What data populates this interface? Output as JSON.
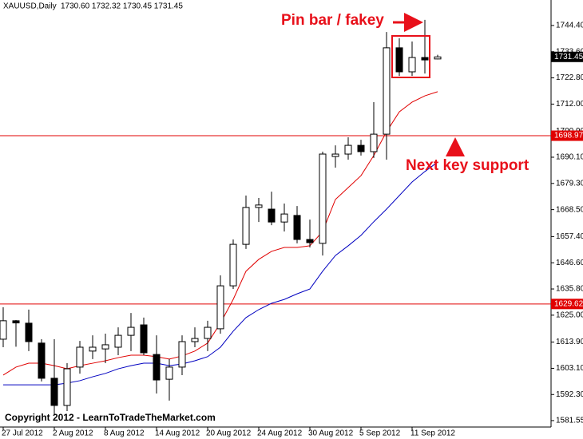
{
  "chart_data": {
    "type": "candlestick",
    "title": "XAUUSD,Daily",
    "ohlc_label": "1730.60 1732.32 1730.45 1731.45",
    "categories": [
      "27 Jul 2012",
      null,
      null,
      null,
      "2 Aug 2012",
      null,
      null,
      null,
      "8 Aug 2012",
      null,
      null,
      null,
      "14 Aug 2012",
      null,
      null,
      null,
      "20 Aug 2012",
      null,
      null,
      null,
      "24 Aug 2012",
      null,
      null,
      null,
      "30 Aug 2012",
      null,
      null,
      null,
      "5 Sep 2012",
      null,
      null,
      null,
      "11 Sep 2012",
      null,
      null
    ],
    "open": [
      1615.1,
      1622.7,
      1621.7,
      1613.5,
      1599.0,
      1587.8,
      1603.6,
      1610.2,
      1611.1,
      1611.8,
      1616.7,
      1621.0,
      1608.8,
      1598.6,
      1603.6,
      1614.1,
      1615.4,
      1619.4,
      1637.1,
      1654.2,
      1669.4,
      1668.7,
      1663.4,
      1666.1,
      1656.2,
      1654.6,
      1690.4,
      1691.4,
      1695.0,
      1692.4,
      1699.6,
      1735.2,
      1725.3,
      1731.2,
      1730.6
    ],
    "high": [
      1628.3,
      1623.0,
      1627.3,
      1615.1,
      1615.1,
      1605.2,
      1614.4,
      1616.7,
      1617.4,
      1620.0,
      1625.9,
      1624.0,
      1616.7,
      1606.9,
      1616.7,
      1620.0,
      1622.7,
      1641.4,
      1656.2,
      1674.3,
      1673.3,
      1675.9,
      1671.0,
      1670.0,
      1664.4,
      1692.4,
      1695.0,
      1698.3,
      1697.3,
      1712.8,
      1741.7,
      1739.1,
      1737.8,
      1746.7,
      1732.32
    ],
    "low": [
      1611.8,
      1612.0,
      1610.2,
      1597.7,
      1583.8,
      1585.5,
      1600.9,
      1606.9,
      1605.2,
      1608.5,
      1610.2,
      1608.5,
      1592.7,
      1589.8,
      1600.3,
      1611.8,
      1610.2,
      1617.4,
      1635.8,
      1652.3,
      1663.4,
      1662.1,
      1659.5,
      1654.6,
      1652.9,
      1649.6,
      1685.8,
      1689.1,
      1690.8,
      1689.8,
      1689.1,
      1723.6,
      1723.6,
      1724.6,
      1730.45
    ],
    "close": [
      1622.7,
      1621.8,
      1614.1,
      1599.0,
      1587.8,
      1602.9,
      1611.8,
      1611.8,
      1612.8,
      1616.7,
      1620.0,
      1609.5,
      1598.3,
      1603.6,
      1614.1,
      1615.4,
      1620.0,
      1637.1,
      1654.2,
      1669.4,
      1670.4,
      1663.4,
      1666.7,
      1656.2,
      1654.9,
      1691.4,
      1691.4,
      1695.0,
      1692.4,
      1699.6,
      1735.2,
      1725.3,
      1731.2,
      1730.2,
      1731.45
    ],
    "lines": [
      {
        "color": "#e00000",
        "values": [
          1600.3,
          1603.6,
          1605.2,
          1605.2,
          1604.2,
          1602.9,
          1604.2,
          1605.2,
          1606.2,
          1607.5,
          1608.5,
          1608.5,
          1607.9,
          1606.9,
          1608.2,
          1610.2,
          1613.5,
          1621.7,
          1631.5,
          1643.1,
          1648.0,
          1651.3,
          1652.9,
          1652.9,
          1653.6,
          1659.5,
          1672.7,
          1677.6,
          1682.5,
          1690.8,
          1700.6,
          1708.8,
          1712.8,
          1715.4,
          1717.1
        ]
      },
      {
        "color": "#0000c0",
        "values": [
          1596.3,
          1596.3,
          1596.3,
          1596.3,
          1596.3,
          1597.0,
          1598.0,
          1599.6,
          1601.0,
          1602.9,
          1604.2,
          1605.2,
          1605.2,
          1604.2,
          1604.9,
          1606.2,
          1607.9,
          1611.8,
          1618.4,
          1624.0,
          1627.3,
          1629.9,
          1631.5,
          1633.8,
          1635.8,
          1643.1,
          1649.6,
          1653.6,
          1657.9,
          1663.5,
          1668.7,
          1674.3,
          1679.9,
          1684.2,
          1688.1
        ]
      }
    ],
    "hlines": [
      {
        "value": 1698.97,
        "label": "1698.97",
        "color": "#e00000"
      },
      {
        "value": 1629.62,
        "label": "1629.62",
        "color": "#e00000"
      }
    ],
    "price_marker": {
      "value": 1731.45,
      "label": "1731.45"
    },
    "ylim": [
      1578.9,
      1754.9
    ],
    "yticks": [
      {
        "value": 1744.4,
        "label": "1744.40"
      },
      {
        "value": 1733.6,
        "label": "1733.60"
      },
      {
        "value": 1722.8,
        "label": "1722.80"
      },
      {
        "value": 1712.0,
        "label": "1712.00"
      },
      {
        "value": 1700.9,
        "label": "1700.90"
      },
      {
        "value": 1690.1,
        "label": "1690.10"
      },
      {
        "value": 1679.3,
        "label": "1679.30"
      },
      {
        "value": 1668.5,
        "label": "1668.50"
      },
      {
        "value": 1657.4,
        "label": "1657.40"
      },
      {
        "value": 1646.6,
        "label": "1646.60"
      },
      {
        "value": 1635.8,
        "label": "1635.80"
      },
      {
        "value": 1625.0,
        "label": "1625.00"
      },
      {
        "value": 1613.9,
        "label": "1613.90"
      },
      {
        "value": 1603.1,
        "label": "1603.10"
      },
      {
        "value": 1592.3,
        "label": "1592.30"
      },
      {
        "value": 1581.55,
        "label": "1581.55"
      }
    ],
    "annotations": [
      "Pin bar / fakey",
      "Next key support"
    ],
    "copyright": "Copyright 2012 - LearnToTradeTheMarket.com"
  }
}
